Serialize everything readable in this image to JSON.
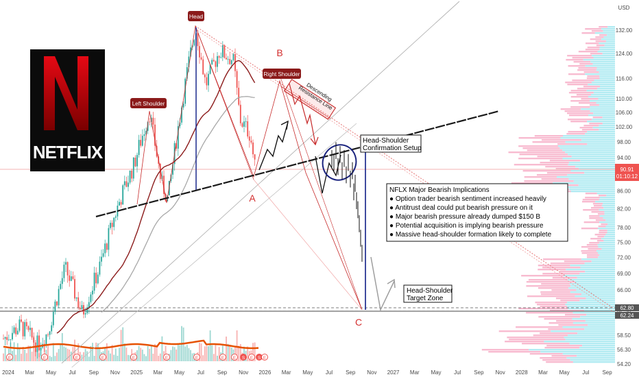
{
  "chart_data": {
    "type": "candlestick",
    "currency": "USD",
    "y_scale": "log",
    "ylim": [
      54.2,
      138
    ],
    "y_ticks": [
      132.0,
      124.0,
      116.0,
      110.0,
      106.0,
      102.0,
      98.0,
      94.0,
      90.0,
      86.0,
      82.0,
      78.0,
      75.0,
      72.0,
      69.0,
      66.0,
      62.5,
      58.5,
      56.3,
      54.2
    ],
    "y_tick_labels": [
      "132.00",
      "124.00",
      "116.00",
      "110.00",
      "106.00",
      "102.00",
      "98.00",
      "94.00",
      "90.00",
      "86.00",
      "82.00",
      "78.00",
      "75.00",
      "72.00",
      "69.00",
      "66.00",
      "62.50",
      "58.50",
      "56.30",
      "54.20"
    ],
    "x_ticks": [
      "2024",
      "Mar",
      "May",
      "Jul",
      "Sep",
      "Nov",
      "2025",
      "Mar",
      "May",
      "Jul",
      "Sep",
      "Nov",
      "2026",
      "Mar",
      "May",
      "Jul",
      "Sep",
      "Nov",
      "2027",
      "Mar",
      "May",
      "Jul",
      "Sep",
      "Nov",
      "2028",
      "Mar",
      "May",
      "Jul",
      "Sep"
    ],
    "last_price": "90.91",
    "countdown": "01:10:12",
    "level_labels": [
      "62.80",
      "62.24"
    ],
    "levels": [
      62.8,
      62.24
    ],
    "annotations": {
      "head": "Head",
      "left_shoulder": "Left Shoulder",
      "right_shoulder": "Right Shoulder",
      "point_a": "A",
      "point_b": "B",
      "point_c": "C",
      "resistance": [
        "Descending",
        "Resistance Line"
      ],
      "confirmation": [
        "Head-Shoulder",
        "Confirmation Setup"
      ],
      "target": [
        "Head-Shoulder",
        "Target Zone"
      ],
      "implications_title": "NFLX Major Bearish Implications",
      "implications": [
        "● Option trader bearish sentiment increased heavily",
        "● Antitrust deal could put bearish pressure on it",
        "● Major bearish pressure already dumped $150 B",
        "● Potential acquisition is implying bearish pressure",
        "● Massive head-shoulder formation likely to complete"
      ]
    },
    "key_points": {
      "left_shoulder": 106,
      "head": 134,
      "right_shoulder": 113,
      "point_a": 88,
      "target": 62.5
    },
    "event_markers": [
      "E",
      "E",
      "E",
      "E",
      "E",
      "E",
      "E",
      "E",
      "E",
      "S",
      "E",
      "S",
      "E"
    ],
    "colors": {
      "up": "#26a69a",
      "down": "#ef5350",
      "accent": "#c62828",
      "label_bg": "#8b1a1a",
      "neckline": "#222222",
      "ma_long": "#8b1a1a",
      "ma_short": "#9e9e9e"
    }
  },
  "logo": {
    "text": "NETFLIX"
  }
}
